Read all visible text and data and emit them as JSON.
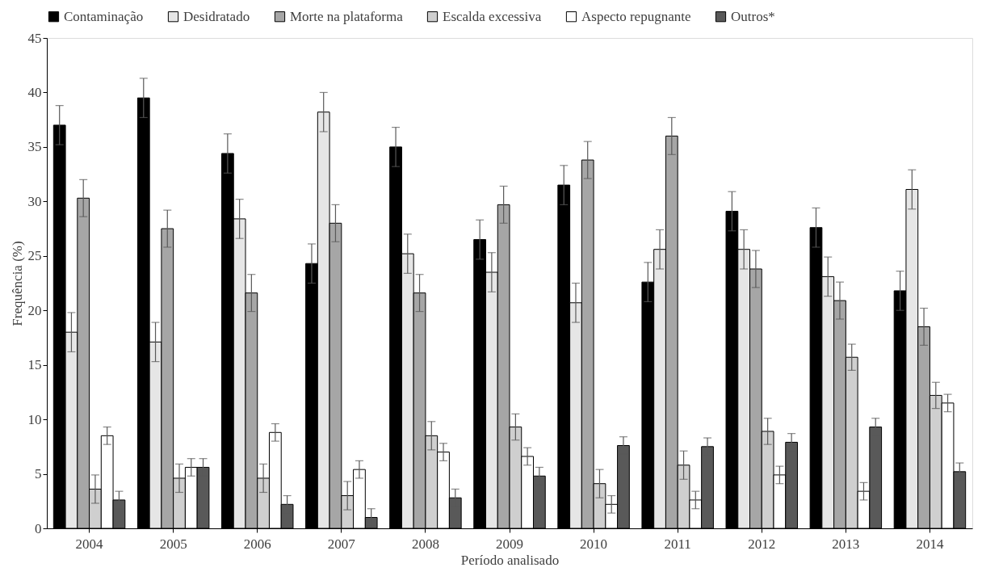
{
  "chart_data": {
    "type": "bar",
    "xlabel": "Período analisado",
    "ylabel": "Frequência  (%)",
    "categories": [
      "2004",
      "2005",
      "2006",
      "2007",
      "2008",
      "2009",
      "2010",
      "2011",
      "2012",
      "2013",
      "2014"
    ],
    "series": [
      {
        "name": "Contaminação",
        "color": "#000000",
        "values": [
          37.0,
          39.5,
          34.4,
          24.3,
          35.0,
          26.5,
          31.5,
          22.6,
          29.1,
          27.6,
          21.8
        ],
        "errors": [
          1.8,
          1.8,
          1.8,
          1.8,
          1.8,
          1.8,
          1.8,
          1.8,
          1.8,
          1.8,
          1.8
        ]
      },
      {
        "name": "Desidratado",
        "color": "#e6e6e6",
        "values": [
          18.0,
          17.1,
          28.4,
          38.2,
          25.2,
          23.5,
          20.7,
          25.6,
          25.6,
          23.1,
          31.1
        ],
        "errors": [
          1.8,
          1.8,
          1.8,
          1.8,
          1.8,
          1.8,
          1.8,
          1.8,
          1.8,
          1.8,
          1.8
        ]
      },
      {
        "name": "Morte na plataforma",
        "color": "#a6a6a6",
        "values": [
          30.3,
          27.5,
          21.6,
          28.0,
          21.6,
          29.7,
          33.8,
          36.0,
          23.8,
          20.9,
          18.5
        ],
        "errors": [
          1.7,
          1.7,
          1.7,
          1.7,
          1.7,
          1.7,
          1.7,
          1.7,
          1.7,
          1.7,
          1.7
        ]
      },
      {
        "name": "Escalda excessiva",
        "color": "#cfcfcf",
        "values": [
          3.6,
          4.6,
          4.6,
          3.0,
          8.5,
          9.3,
          4.1,
          5.8,
          8.9,
          15.7,
          12.2
        ],
        "errors": [
          1.3,
          1.3,
          1.3,
          1.3,
          1.3,
          1.2,
          1.3,
          1.3,
          1.2,
          1.2,
          1.2
        ]
      },
      {
        "name": "Aspecto repugnante",
        "color": "#ffffff",
        "values": [
          8.5,
          5.6,
          8.8,
          5.4,
          7.0,
          6.6,
          2.2,
          2.6,
          4.9,
          3.4,
          11.5
        ],
        "errors": [
          0.8,
          0.8,
          0.8,
          0.8,
          0.8,
          0.8,
          0.8,
          0.8,
          0.8,
          0.8,
          0.8
        ]
      },
      {
        "name": "Outros*",
        "color": "#595959",
        "values": [
          2.6,
          5.6,
          2.2,
          1.0,
          2.8,
          4.8,
          7.6,
          7.5,
          7.9,
          9.3,
          5.2
        ],
        "errors": [
          0.8,
          0.8,
          0.8,
          0.8,
          0.8,
          0.8,
          0.8,
          0.8,
          0.8,
          0.8,
          0.8
        ]
      }
    ],
    "ylim": [
      0,
      45
    ],
    "yticks": [
      0,
      5,
      10,
      15,
      20,
      25,
      30,
      35,
      40,
      45
    ],
    "grid": false,
    "legend": "top"
  }
}
